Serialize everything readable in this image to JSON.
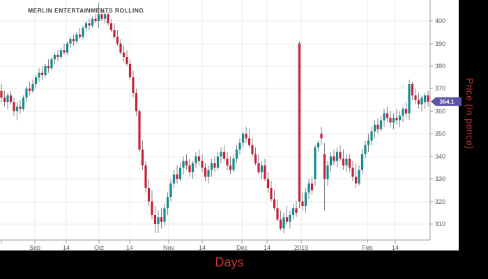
{
  "title": "MERLIN ENTERTAINMENTS ROLLING",
  "x_axis_title": "Days",
  "y_axis_title": "Price (in pence)",
  "price_badge": {
    "label": "364.1",
    "color": "#5a54a4"
  },
  "colors": {
    "background": "#ffffff",
    "gridline": "#ebebeb",
    "axis": "#9b9b9b",
    "tick_text": "#595959",
    "title_text": "#404040",
    "axis_title_text": "#c0362f",
    "strip_bg": "#000000",
    "badge_bg": "#5a54a4",
    "badge_text": "#ffffff",
    "wick": "#7f7f7f"
  },
  "chart_data": {
    "type": "candlestick",
    "title": "MERLIN ENTERTAINMENTS ROLLING",
    "xlabel": "Days",
    "ylabel": "Price (in pence)",
    "ylim": [
      302.9,
      409.3
    ],
    "y_ticks": [
      310,
      320,
      330,
      340,
      350,
      360,
      370,
      380,
      390,
      400
    ],
    "x_ticks": [
      {
        "label": "Sep",
        "i": 10.7
      },
      {
        "label": "14",
        "i": 20.7
      },
      {
        "label": "Oct",
        "i": 31.1
      },
      {
        "label": "14",
        "i": 40.9
      },
      {
        "label": "Nov",
        "i": 53.3
      },
      {
        "label": "14",
        "i": 64.0
      },
      {
        "label": "Dec",
        "i": 76.6
      },
      {
        "label": "14",
        "i": 84.7
      },
      {
        "label": "2019",
        "i": 95.5
      },
      {
        "label": "Feb",
        "i": 116.7
      },
      {
        "label": "14",
        "i": 125.6
      }
    ],
    "x_start": 2,
    "x_step": 4.5,
    "grid": true,
    "last_price": 364.1,
    "up_color": "#128b90",
    "down_color": "#c5203a",
    "candles_format": [
      "open",
      "high",
      "low",
      "close"
    ],
    "candles": [
      [
        369,
        372,
        364,
        366
      ],
      [
        366,
        369,
        362,
        364
      ],
      [
        364,
        368,
        361,
        367
      ],
      [
        367,
        369,
        363,
        364
      ],
      [
        364,
        366,
        358,
        360
      ],
      [
        360,
        364,
        356,
        362
      ],
      [
        362,
        365,
        359,
        361
      ],
      [
        361,
        367,
        360,
        366
      ],
      [
        366,
        371,
        364,
        370
      ],
      [
        370,
        373,
        367,
        369
      ],
      [
        369,
        374,
        368,
        372
      ],
      [
        372,
        376,
        370,
        375
      ],
      [
        375,
        379,
        373,
        377
      ],
      [
        377,
        380,
        374,
        376
      ],
      [
        376,
        381,
        375,
        380
      ],
      [
        380,
        383,
        377,
        379
      ],
      [
        379,
        384,
        378,
        383
      ],
      [
        383,
        386,
        381,
        385
      ],
      [
        385,
        387,
        382,
        384
      ],
      [
        384,
        388,
        383,
        387
      ],
      [
        387,
        390,
        385,
        386
      ],
      [
        386,
        391,
        385,
        390
      ],
      [
        390,
        393,
        388,
        392
      ],
      [
        392,
        394,
        389,
        391
      ],
      [
        391,
        395,
        390,
        394
      ],
      [
        394,
        397,
        392,
        393
      ],
      [
        393,
        398,
        392,
        397
      ],
      [
        397,
        400,
        395,
        399
      ],
      [
        399,
        401,
        396,
        398
      ],
      [
        398,
        402,
        397,
        401
      ],
      [
        401,
        403,
        399,
        400
      ],
      [
        400,
        408,
        397,
        403
      ],
      [
        403,
        405,
        400,
        401
      ],
      [
        401,
        404,
        399,
        403
      ],
      [
        403,
        404,
        398,
        399
      ],
      [
        399,
        401,
        395,
        396
      ],
      [
        396,
        399,
        392,
        393
      ],
      [
        393,
        396,
        389,
        390
      ],
      [
        390,
        392,
        385,
        386
      ],
      [
        386,
        389,
        382,
        384
      ],
      [
        384,
        387,
        380,
        381
      ],
      [
        381,
        383,
        374,
        375
      ],
      [
        375,
        378,
        366,
        368
      ],
      [
        368,
        370,
        358,
        360
      ],
      [
        360,
        361,
        342,
        343
      ],
      [
        343,
        347,
        334,
        336
      ],
      [
        336,
        338,
        324,
        326
      ],
      [
        326,
        330,
        318,
        320
      ],
      [
        320,
        325,
        312,
        314
      ],
      [
        314,
        318,
        306,
        310
      ],
      [
        310,
        316,
        306,
        313
      ],
      [
        313,
        317,
        308,
        311
      ],
      [
        311,
        319,
        309,
        317
      ],
      [
        317,
        324,
        314,
        322
      ],
      [
        322,
        330,
        320,
        328
      ],
      [
        328,
        334,
        326,
        332
      ],
      [
        332,
        336,
        328,
        330
      ],
      [
        330,
        337,
        329,
        335
      ],
      [
        335,
        340,
        332,
        338
      ],
      [
        338,
        341,
        334,
        336
      ],
      [
        336,
        339,
        331,
        333
      ],
      [
        333,
        338,
        330,
        337
      ],
      [
        337,
        342,
        335,
        340
      ],
      [
        340,
        343,
        336,
        338
      ],
      [
        338,
        341,
        333,
        335
      ],
      [
        335,
        337,
        329,
        331
      ],
      [
        331,
        336,
        328,
        334
      ],
      [
        334,
        339,
        331,
        337
      ],
      [
        337,
        340,
        333,
        335
      ],
      [
        335,
        342,
        334,
        340
      ],
      [
        340,
        344,
        337,
        342
      ],
      [
        342,
        345,
        338,
        339
      ],
      [
        339,
        342,
        334,
        336
      ],
      [
        336,
        340,
        332,
        334
      ],
      [
        334,
        341,
        333,
        339
      ],
      [
        339,
        345,
        337,
        343
      ],
      [
        343,
        348,
        341,
        346
      ],
      [
        346,
        351,
        344,
        350
      ],
      [
        350,
        353,
        346,
        348
      ],
      [
        348,
        352,
        344,
        345
      ],
      [
        345,
        348,
        340,
        341
      ],
      [
        341,
        344,
        336,
        337
      ],
      [
        337,
        341,
        332,
        333
      ],
      [
        333,
        338,
        330,
        336
      ],
      [
        336,
        339,
        329,
        330
      ],
      [
        330,
        333,
        324,
        326
      ],
      [
        326,
        329,
        320,
        321
      ],
      [
        321,
        325,
        316,
        317
      ],
      [
        317,
        321,
        311,
        312
      ],
      [
        312,
        316,
        307,
        308
      ],
      [
        308,
        315,
        306,
        313
      ],
      [
        313,
        318,
        310,
        311
      ],
      [
        311,
        316,
        308,
        314
      ],
      [
        314,
        319,
        312,
        317
      ],
      [
        317,
        320,
        313,
        315
      ],
      [
        390,
        391,
        317,
        320
      ],
      [
        320,
        324,
        316,
        318
      ],
      [
        318,
        326,
        315,
        324
      ],
      [
        324,
        330,
        321,
        328
      ],
      [
        328,
        331,
        323,
        325
      ],
      [
        330,
        345,
        327,
        344
      ],
      [
        344,
        347,
        342,
        346
      ],
      [
        350,
        353,
        345,
        348
      ],
      [
        341,
        346,
        316,
        330
      ],
      [
        330,
        338,
        327,
        336
      ],
      [
        336,
        342,
        333,
        340
      ],
      [
        340,
        343,
        336,
        338
      ],
      [
        338,
        344,
        335,
        342
      ],
      [
        342,
        345,
        338,
        339
      ],
      [
        339,
        343,
        334,
        336
      ],
      [
        336,
        341,
        333,
        339
      ],
      [
        339,
        341,
        333,
        335
      ],
      [
        335,
        338,
        329,
        331
      ],
      [
        331,
        337,
        326,
        328
      ],
      [
        328,
        336,
        327,
        334
      ],
      [
        334,
        343,
        332,
        341
      ],
      [
        341,
        347,
        339,
        345
      ],
      [
        345,
        350,
        342,
        347
      ],
      [
        347,
        353,
        345,
        351
      ],
      [
        351,
        356,
        348,
        354
      ],
      [
        354,
        357,
        350,
        352
      ],
      [
        352,
        358,
        351,
        356
      ],
      [
        356,
        361,
        353,
        359
      ],
      [
        359,
        362,
        355,
        357
      ],
      [
        357,
        360,
        353,
        355
      ],
      [
        355,
        359,
        352,
        357
      ],
      [
        357,
        361,
        354,
        356
      ],
      [
        356,
        360,
        353,
        358
      ],
      [
        358,
        362,
        355,
        361
      ],
      [
        361,
        364,
        357,
        359
      ],
      [
        359,
        374,
        356,
        372
      ],
      [
        372,
        373,
        365,
        367
      ],
      [
        367,
        370,
        363,
        365
      ],
      [
        365,
        368,
        361,
        363
      ],
      [
        363,
        367,
        360,
        366
      ],
      [
        364,
        368,
        361,
        367
      ],
      [
        367,
        369,
        362,
        364.1
      ]
    ]
  }
}
